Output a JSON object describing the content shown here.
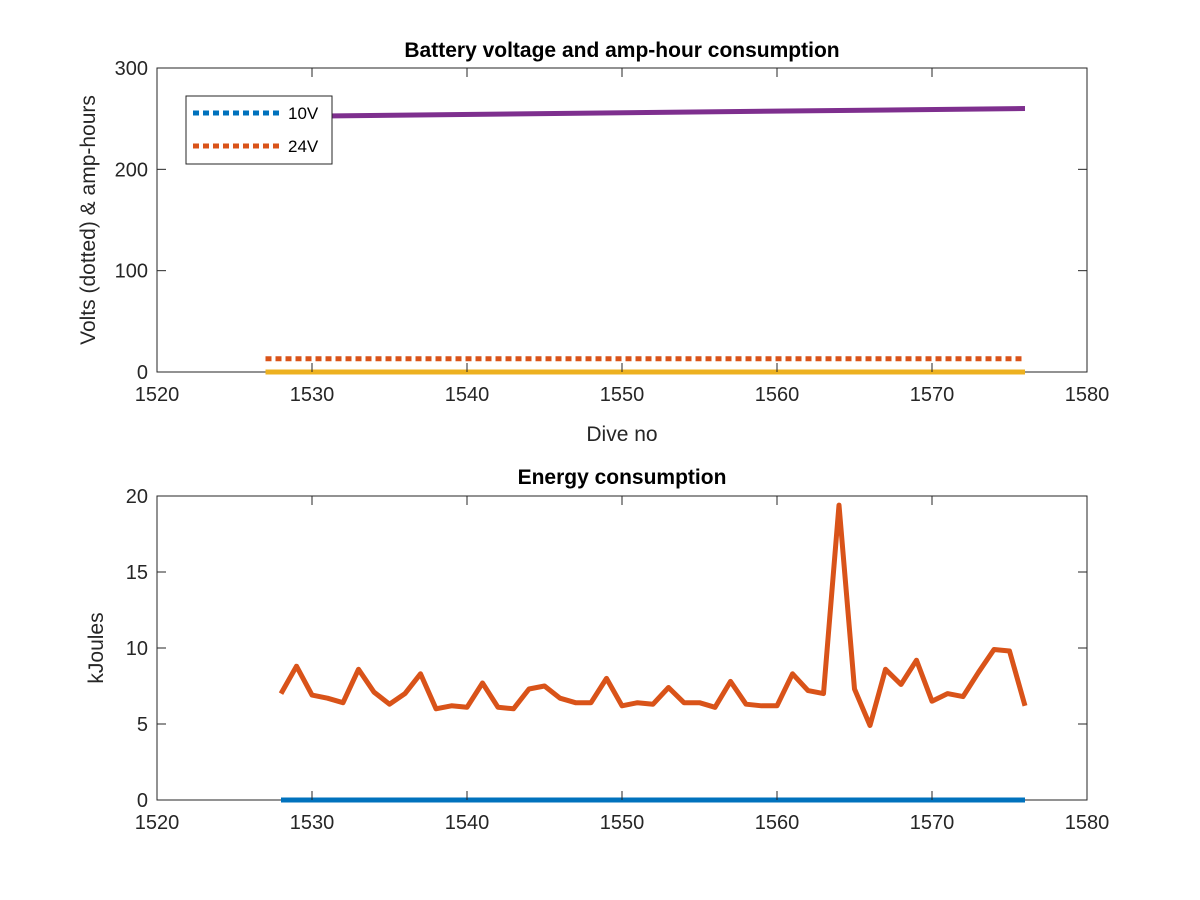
{
  "chart_data": [
    {
      "type": "line",
      "title": "Battery voltage and amp-hour consumption",
      "xlabel": "Dive no",
      "ylabel": "Volts (dotted) & amp-hours",
      "xlim": [
        1520,
        1580
      ],
      "ylim": [
        0,
        300
      ],
      "xticks": [
        "1520",
        "1530",
        "1540",
        "1550",
        "1560",
        "1570",
        "1580"
      ],
      "yticks": [
        "0",
        "100",
        "200",
        "300"
      ],
      "grid": false,
      "legend_position": "top-left",
      "legend": [
        "10V",
        "24V"
      ],
      "series": [
        {
          "name": "10V",
          "style": "dotted",
          "color": "#0072BD",
          "x": [
            1527,
            1576
          ],
          "y": [
            0,
            0
          ]
        },
        {
          "name": "24V",
          "style": "dotted",
          "color": "#D95319",
          "x": [
            1527,
            1576
          ],
          "y": [
            13,
            13
          ]
        },
        {
          "style": "solid",
          "color": "#EDB120",
          "x": [
            1527,
            1576
          ],
          "y": [
            0,
            0
          ]
        },
        {
          "style": "solid",
          "color": "#7E2F8E",
          "x": [
            1527,
            1576
          ],
          "y": [
            252,
            260
          ]
        }
      ]
    },
    {
      "type": "line",
      "title": "Energy consumption",
      "xlabel": "",
      "ylabel": "kJoules",
      "xlim": [
        1520,
        1580
      ],
      "ylim": [
        0,
        20
      ],
      "xticks": [
        "1520",
        "1530",
        "1540",
        "1550",
        "1560",
        "1570",
        "1580"
      ],
      "yticks": [
        "0",
        "5",
        "10",
        "15",
        "20"
      ],
      "grid": false,
      "series": [
        {
          "style": "solid",
          "color": "#0072BD",
          "x": [
            1528,
            1576
          ],
          "y": [
            0,
            0
          ]
        },
        {
          "style": "solid",
          "color": "#D95319",
          "x": [
            1528,
            1529,
            1530,
            1531,
            1532,
            1533,
            1534,
            1535,
            1536,
            1537,
            1538,
            1539,
            1540,
            1541,
            1542,
            1543,
            1544,
            1545,
            1546,
            1547,
            1548,
            1549,
            1550,
            1551,
            1552,
            1553,
            1554,
            1555,
            1556,
            1557,
            1558,
            1559,
            1560,
            1561,
            1562,
            1563,
            1564,
            1565,
            1566,
            1567,
            1568,
            1569,
            1570,
            1571,
            1572,
            1573,
            1574,
            1575,
            1576
          ],
          "y": [
            7.0,
            8.8,
            6.9,
            6.7,
            6.4,
            8.6,
            7.1,
            6.3,
            7.0,
            8.3,
            6.0,
            6.2,
            6.1,
            7.7,
            6.1,
            6.0,
            7.3,
            7.5,
            6.7,
            6.4,
            6.4,
            8.0,
            6.2,
            6.4,
            6.3,
            7.4,
            6.4,
            6.4,
            6.1,
            7.8,
            6.3,
            6.2,
            6.2,
            8.3,
            7.2,
            7.0,
            19.4,
            7.3,
            4.9,
            8.6,
            7.6,
            9.2,
            6.5,
            7.0,
            6.8,
            8.4,
            9.9,
            9.8,
            6.2
          ]
        }
      ]
    }
  ]
}
